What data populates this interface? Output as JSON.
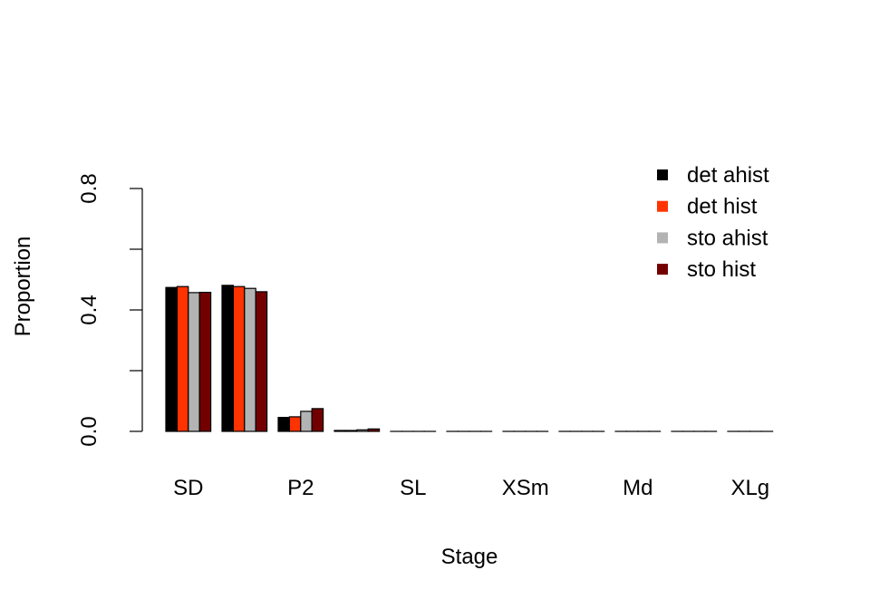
{
  "chart_data": {
    "type": "bar",
    "title": "",
    "xlabel": "Stage",
    "ylabel": "Proportion",
    "ylim": [
      0,
      0.8
    ],
    "yticks": [
      0,
      0.2,
      0.4,
      0.6,
      0.8
    ],
    "ytick_labels": [
      "0.0",
      "",
      "0.4",
      "",
      "0.8"
    ],
    "categories": [
      "SD",
      "",
      "P2",
      "",
      "SL",
      "",
      "XSm",
      "",
      "Md",
      "",
      "XLg"
    ],
    "grid": false,
    "legend_position": "top-right",
    "series": [
      {
        "name": "det ahist",
        "color": "#000000",
        "values": [
          0.474,
          0.481,
          0.046,
          0.003,
          0,
          0,
          0,
          0,
          0,
          0,
          0
        ]
      },
      {
        "name": "det hist",
        "color": "#ff3300",
        "values": [
          0.477,
          0.477,
          0.048,
          0.003,
          0,
          0,
          0,
          0,
          0,
          0,
          0
        ]
      },
      {
        "name": "sto ahist",
        "color": "#b3b3b3",
        "values": [
          0.457,
          0.471,
          0.066,
          0.005,
          0,
          0,
          0,
          0,
          0,
          0,
          0
        ]
      },
      {
        "name": "sto hist",
        "color": "#730000",
        "values": [
          0.458,
          0.46,
          0.075,
          0.008,
          0,
          0,
          0,
          0,
          0,
          0,
          0
        ]
      }
    ]
  }
}
